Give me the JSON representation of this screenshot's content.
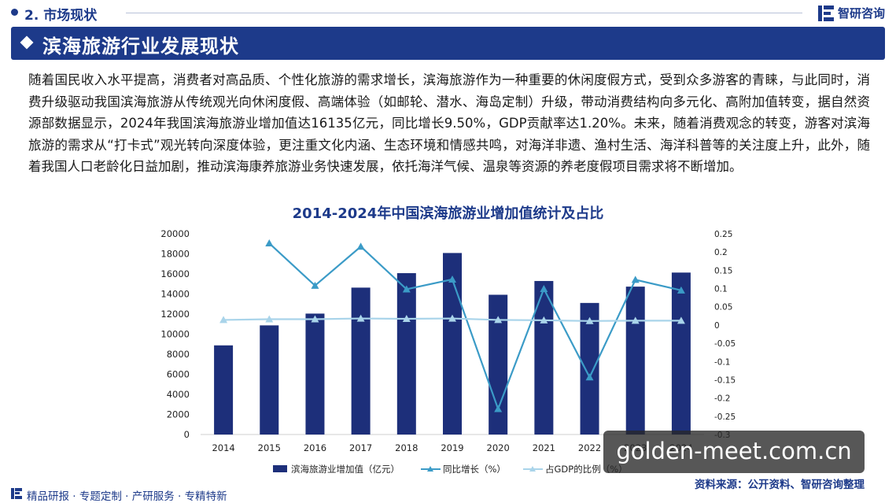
{
  "header": {
    "section": "2. 市场现状",
    "brand": "智研咨询"
  },
  "banner": {
    "title": "滨海旅游行业发展现状"
  },
  "intro": "随着国民收入水平提高，消费者对高品质、个性化旅游的需求增长，滨海旅游作为一种重要的休闲度假方式，受到众多游客的青睐，与此同时，消费升级驱动我国滨海旅游从传统观光向休闲度假、高端体验（如邮轮、潜水、海岛定制）升级，带动消费结构向多元化、高附加值转变，据自然资源部数据显示，2024年我国滨海旅游业增加值达16135亿元，同比增长9.50%，GDP贡献率达1.20%。未来，随着消费观念的转变，游客对滨海旅游的需求从“打卡式”观光转向深度体验，更注重文化内涵、生态环境和情感共鸣，对海洋非遗、渔村生活、海洋科普等的关注度上升，此外，随着我国人口老龄化日益加剧，推动滨海康养旅游业务快速发展，依托海洋气候、温泉等资源的养老度假项目需求将不断增加。",
  "source": "资料来源：公开资料、智研咨询整理",
  "footer": {
    "tagline": "精品研报 · 专题定制 · 产研服务 · 专精特新"
  },
  "watermark": "golden-meet.com.cn",
  "colors": {
    "bar": "#1d2f7a",
    "growth": "#3b9bc7",
    "share": "#a9d4ea",
    "brand": "#1d3a8a"
  },
  "chart_data": {
    "type": "bar",
    "title": "2014-2024年中国滨海旅游业增加值统计及占比",
    "categories": [
      "2014",
      "2015",
      "2016",
      "2017",
      "2018",
      "2019",
      "2020",
      "2021",
      "2022",
      "2023",
      "2024"
    ],
    "series": [
      {
        "name": "滨海旅游业增加值（亿元）",
        "type": "bar",
        "axis": "left",
        "values": [
          8882,
          10874,
          12047,
          14636,
          16078,
          18086,
          13924,
          15297,
          13109,
          14735,
          16135
        ]
      },
      {
        "name": "同比增长（%）",
        "type": "line",
        "axis": "right",
        "values": [
          null,
          0.224,
          0.108,
          0.215,
          0.098,
          0.125,
          -0.23,
          0.099,
          -0.143,
          0.124,
          0.095
        ]
      },
      {
        "name": "占GDP的比例（%）",
        "type": "line",
        "axis": "right",
        "values": [
          0.014,
          0.016,
          0.016,
          0.018,
          0.017,
          0.018,
          0.014,
          0.013,
          0.011,
          0.012,
          0.012
        ]
      }
    ],
    "y_left": {
      "min": 0,
      "max": 20000,
      "ticks": [
        "0",
        "2000",
        "4000",
        "6000",
        "8000",
        "10000",
        "12000",
        "14000",
        "16000",
        "18000",
        "20000"
      ]
    },
    "y_right": {
      "min": -0.3,
      "max": 0.25,
      "ticks": [
        "-0.3",
        "-0.25",
        "-0.2",
        "-0.15",
        "-0.1",
        "-0.05",
        "0",
        "0.05",
        "0.1",
        "0.15",
        "0.2",
        "0.25"
      ]
    },
    "legend": "bottom",
    "grid": false
  }
}
